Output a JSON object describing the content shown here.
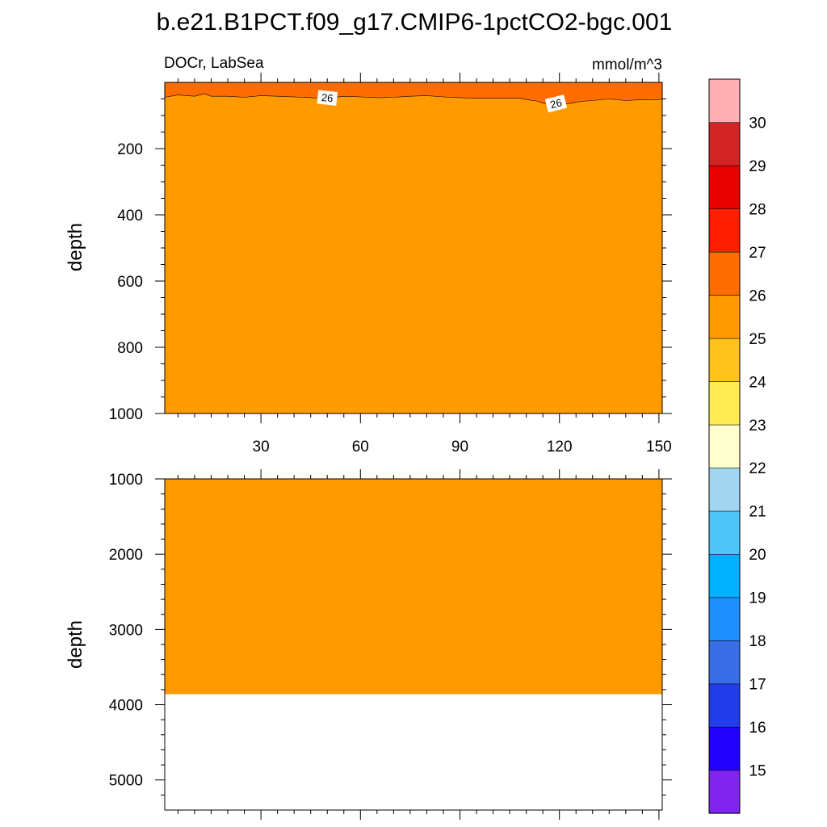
{
  "chart_data": {
    "type": "heatmap",
    "title": "b.e21.B1PCT.f09_g17.CMIP6-1pctCO2-bgc.001",
    "left_label": "DOCr, LabSea",
    "units": "mmol/m^3",
    "colors": {
      "band_25_26": "#ff9a00",
      "band_26_27": "#ff6c00",
      "missing": "#ffffff"
    },
    "panels": [
      {
        "name": "upper",
        "ylabel": "depth",
        "xlim": [
          1,
          151
        ],
        "ylim": [
          0,
          1000
        ],
        "xticks": [
          30,
          60,
          90,
          120,
          150
        ],
        "xtick_labels": [
          "30",
          "60",
          "90",
          "120",
          "150"
        ],
        "yticks": [
          200,
          400,
          600,
          800,
          1000
        ],
        "ytick_labels": [
          "200",
          "400",
          "600",
          "800",
          "1000"
        ],
        "contour_level": 26,
        "contour_labels": [
          {
            "text": "26",
            "x": 50,
            "y": 48
          },
          {
            "text": "26",
            "x": 119,
            "y": 65
          }
        ],
        "contour_26_depth": {
          "x": [
            1,
            5,
            10,
            13,
            15,
            20,
            25,
            30,
            35,
            40,
            45,
            50,
            55,
            60,
            65,
            70,
            75,
            80,
            85,
            90,
            95,
            100,
            105,
            108,
            110,
            113,
            115,
            118,
            120,
            123,
            125,
            128,
            130,
            135,
            140,
            145,
            150,
            151
          ],
          "y": [
            45,
            38,
            42,
            34,
            42,
            42,
            45,
            40,
            42,
            44,
            46,
            48,
            42,
            44,
            46,
            45,
            42,
            40,
            44,
            46,
            48,
            48,
            48,
            47,
            52,
            56,
            62,
            68,
            66,
            64,
            60,
            56,
            55,
            50,
            55,
            52,
            52,
            50
          ]
        }
      },
      {
        "name": "lower",
        "ylabel": "depth",
        "xlim": [
          1,
          151
        ],
        "ylim": [
          1000,
          5400
        ],
        "xticks": [
          30,
          60,
          90,
          120,
          150
        ],
        "yticks": [
          1000,
          2000,
          3000,
          4000,
          5000
        ],
        "ytick_labels": [
          "1000",
          "2000",
          "3000",
          "4000",
          "5000"
        ],
        "bottom_depth": 3860
      }
    ],
    "colorbar": {
      "labels": [
        "15",
        "16",
        "17",
        "18",
        "19",
        "20",
        "21",
        "22",
        "23",
        "24",
        "25",
        "26",
        "27",
        "28",
        "29",
        "30"
      ],
      "colors": [
        "#7f24ee",
        "#2400ff",
        "#223ceb",
        "#3a6ee6",
        "#1e90ff",
        "#00b1ff",
        "#4fc6f7",
        "#a2d5ef",
        "#ffffd0",
        "#ffeb52",
        "#ffc31b",
        "#ff9a00",
        "#ff6c00",
        "#ff1e00",
        "#e70000",
        "#d42323",
        "#ffb0b5"
      ]
    }
  }
}
